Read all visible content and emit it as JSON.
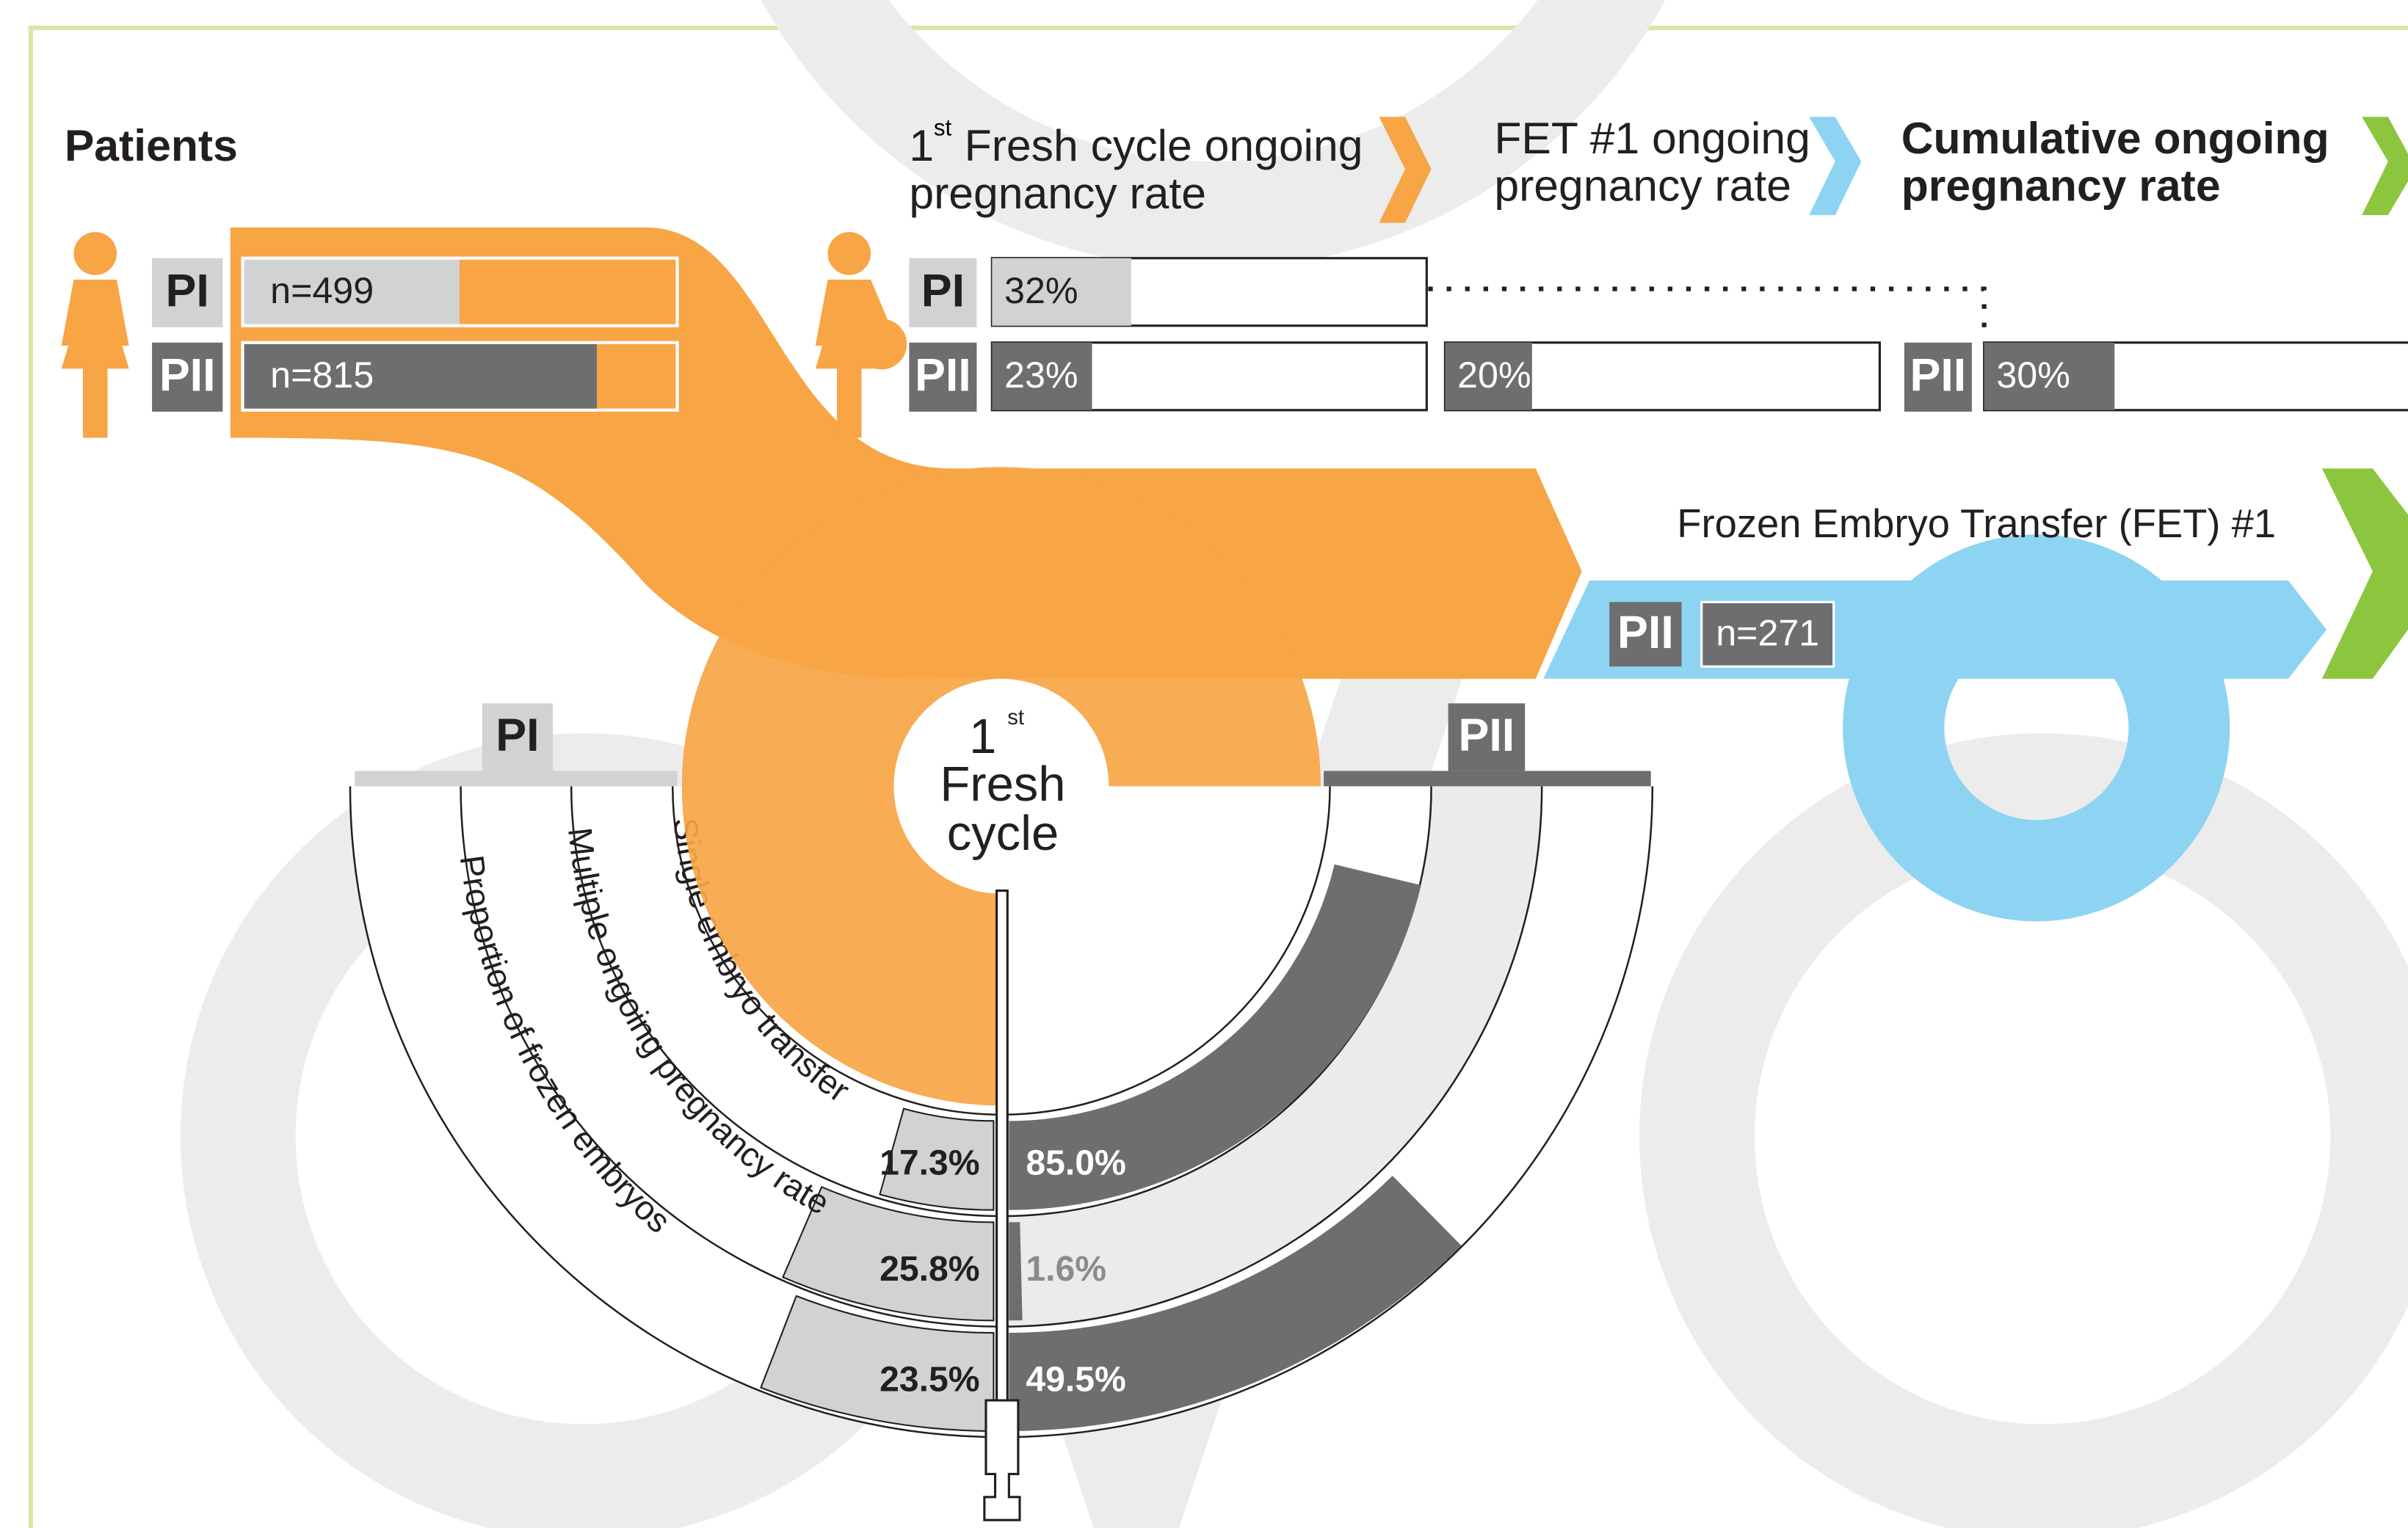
{
  "title_patients": "Patients",
  "headers": [
    {
      "pre": "1",
      "sup": "st",
      "lines": [
        "Fresh cycle ongoing",
        "pregnancy rate"
      ]
    },
    {
      "lines": [
        "FET #1 ongoing",
        "pregnancy rate"
      ]
    },
    {
      "lines": [
        "Cumulative ongoing",
        "pregnancy rate"
      ]
    }
  ],
  "group_labels": [
    "PI",
    "PII"
  ],
  "patients": {
    "xlim": [
      0,
      1000
    ],
    "PI": {
      "value": 499,
      "label": "n=499"
    },
    "PII": {
      "value": 815,
      "label": "n=815"
    }
  },
  "rates": {
    "xlim": [
      0,
      100
    ],
    "fresh": {
      "PI": {
        "value": 32,
        "label": "32%"
      },
      "PII": {
        "value": 23,
        "label": "23%"
      }
    },
    "fet1": {
      "PII": {
        "value": 20,
        "label": "20%"
      }
    },
    "cumulative": {
      "PII": {
        "value": 30,
        "label": "30%"
      }
    }
  },
  "fet": {
    "title": "Frozen Embryo Transfer (FET) #1",
    "n": "n=271"
  },
  "center": {
    "pre": "1",
    "sup": "st",
    "lines": [
      "Fresh",
      "cycle"
    ]
  },
  "rings": {
    "lim": [
      0,
      100
    ],
    "items": [
      {
        "name": "Single embryo transfer",
        "PI": {
          "value": 17.3,
          "label": "17.3%"
        },
        "PII": {
          "value": 85.0,
          "label": "85.0%"
        }
      },
      {
        "name": "Multiple ongoing pregnancy rate",
        "PI": {
          "value": 25.8,
          "label": "25.8%"
        },
        "PII": {
          "value": 1.6,
          "label": "1.6%"
        }
      },
      {
        "name": "Proportion of frozen embryos",
        "PI": {
          "value": 23.5,
          "label": "23.5%"
        },
        "PII": {
          "value": 49.5,
          "label": "49.5%"
        }
      }
    ]
  }
}
